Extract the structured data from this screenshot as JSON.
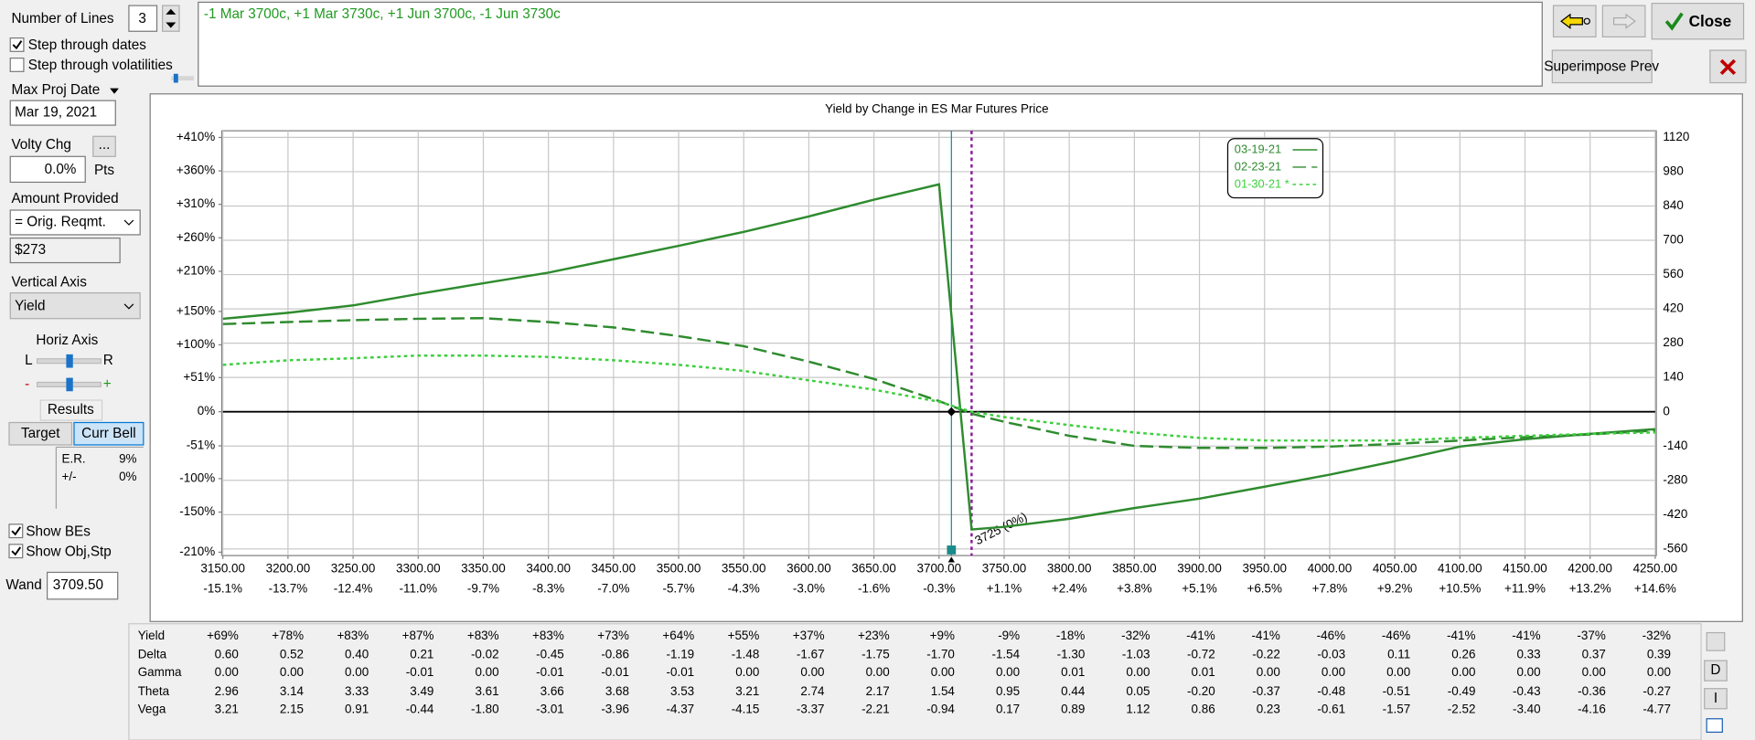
{
  "controls": {
    "number_of_lines_label": "Number of Lines",
    "number_of_lines": 3,
    "step_dates": "Step through dates",
    "step_vols": "Step through volatilities",
    "max_proj_date_label": "Max Proj Date",
    "max_proj_date": "Mar 19, 2021",
    "volty_chg_label": "Volty Chg",
    "ellipsis": "...",
    "volty_chg": "0.0%",
    "pts": "Pts",
    "amount_provided_label": "Amount Provided",
    "amount_provided": "= Orig. Reqmt.",
    "amount": "$273",
    "vertical_axis_label": "Vertical Axis",
    "vertical_axis": "Yield",
    "horiz_axis_label": "Horiz Axis",
    "l": "L",
    "r": "R",
    "minus": "-",
    "plus": "+",
    "results": "Results",
    "target": "Target",
    "curr_bell": "Curr Bell",
    "er_label": "E.R.",
    "er": "9%",
    "pm_label": "+/-",
    "pm": "0%",
    "show_bes": "Show BEs",
    "show_obj": "Show Obj,Stp",
    "wand_label": "Wand",
    "wand": {
      "value": 3709.5,
      "label": "3709.50"
    }
  },
  "position": "-1 Mar 3700c, +1 Mar 3730c, +1 Jun 3700c, -1 Jun 3730c",
  "buttons": {
    "close": "Close",
    "superimpose": "Superimpose Prev",
    "side": [
      "D",
      "I"
    ]
  },
  "chart_data": {
    "type": "line",
    "title": "Yield by Change in ES Mar Futures Price",
    "grid": true,
    "x": [
      3150,
      3200,
      3250,
      3300,
      3350,
      3400,
      3450,
      3500,
      3550,
      3600,
      3650,
      3700,
      3725,
      3750,
      3800,
      3850,
      3900,
      3950,
      4000,
      4050,
      4100,
      4150,
      4200,
      4250
    ],
    "series": [
      {
        "name": "03-19-21",
        "color": "#2e8b2e",
        "style": "solid",
        "values": [
          139,
          148,
          159,
          176,
          192,
          208,
          228,
          248,
          269,
          292,
          317,
          340,
          -176,
          -172,
          -160,
          -144,
          -130,
          -112,
          -94,
          -74,
          -52,
          -41,
          -33,
          -26
        ]
      },
      {
        "name": "02-23-21",
        "color": "#2e8b2e",
        "style": "dashed",
        "values": [
          131,
          134,
          137,
          139,
          140,
          134,
          126,
          113,
          98,
          75,
          49,
          16,
          -3,
          -15,
          -36,
          -51,
          -54,
          -54,
          -52,
          -48,
          -43,
          -38,
          -34,
          -28
        ]
      },
      {
        "name": "01-30-21 *",
        "color": "#3ccf3c",
        "style": "dotted",
        "values": [
          70,
          77,
          80,
          84,
          84,
          82,
          77,
          70,
          61,
          47,
          33,
          15,
          0,
          -8,
          -20,
          -31,
          -39,
          -43,
          -43,
          -43,
          -39,
          -36,
          -33,
          -31
        ]
      }
    ],
    "xlim": [
      3150,
      4250
    ],
    "xticks": [
      {
        "value": 3150,
        "label": "3150.00"
      },
      {
        "value": 3200,
        "label": "3200.00"
      },
      {
        "value": 3250,
        "label": "3250.00"
      },
      {
        "value": 3300,
        "label": "3300.00"
      },
      {
        "value": 3350,
        "label": "3350.00"
      },
      {
        "value": 3400,
        "label": "3400.00"
      },
      {
        "value": 3450,
        "label": "3450.00"
      },
      {
        "value": 3500,
        "label": "3500.00"
      },
      {
        "value": 3550,
        "label": "3550.00"
      },
      {
        "value": 3600,
        "label": "3600.00"
      },
      {
        "value": 3650,
        "label": "3650.00"
      },
      {
        "value": 3700,
        "label": "3700.00"
      },
      {
        "value": 3750,
        "label": "3750.00"
      },
      {
        "value": 3800,
        "label": "3800.00"
      },
      {
        "value": 3850,
        "label": "3850.00"
      },
      {
        "value": 3900,
        "label": "3900.00"
      },
      {
        "value": 3950,
        "label": "3950.00"
      },
      {
        "value": 4000,
        "label": "4000.00"
      },
      {
        "value": 4050,
        "label": "4050.00"
      },
      {
        "value": 4100,
        "label": "4100.00"
      },
      {
        "value": 4150,
        "label": "4150.00"
      },
      {
        "value": 4200,
        "label": "4200.00"
      },
      {
        "value": 4250,
        "label": "4250.00"
      }
    ],
    "x_pct_labels": [
      "-15.1%",
      "-13.7%",
      "-12.4%",
      "-11.0%",
      "-9.7%",
      "-8.3%",
      "-7.0%",
      "-5.7%",
      "-4.3%",
      "-3.0%",
      "-1.6%",
      "-0.3%",
      "+1.1%",
      "+2.4%",
      "+3.8%",
      "+5.1%",
      "+6.5%",
      "+7.8%",
      "+9.2%",
      "+10.5%",
      "+11.9%",
      "+13.2%",
      "+14.6%"
    ],
    "ylim": [
      -215,
      420
    ],
    "yticks": [
      {
        "value": 410,
        "label": "+410%"
      },
      {
        "value": 360,
        "label": "+360%"
      },
      {
        "value": 310,
        "label": "+310%"
      },
      {
        "value": 260,
        "label": "+260%"
      },
      {
        "value": 210,
        "label": "+210%"
      },
      {
        "value": 150,
        "label": "+150%"
      },
      {
        "value": 100,
        "label": "+100%"
      },
      {
        "value": 51,
        "label": "+51%"
      },
      {
        "value": 0,
        "label": "0%"
      },
      {
        "value": -51,
        "label": "-51%"
      },
      {
        "value": -100,
        "label": "-100%"
      },
      {
        "value": -150,
        "label": "-150%"
      },
      {
        "value": -210,
        "label": "-210%"
      }
    ],
    "y2lim": [
      -587,
      1147
    ],
    "y2ticks": [
      1120,
      980,
      840,
      700,
      560,
      420,
      280,
      140,
      0,
      -140,
      -280,
      -420,
      -560
    ],
    "annotations": [
      {
        "value": 3725,
        "label": "3725 (0%)"
      }
    ]
  },
  "table": {
    "row_labels": [
      "Yield",
      "Delta",
      "Gamma",
      "Theta",
      "Vega"
    ],
    "rows": [
      [
        "+69%",
        "+78%",
        "+83%",
        "+87%",
        "+83%",
        "+83%",
        "+73%",
        "+64%",
        "+55%",
        "+37%",
        "+23%",
        "+9%",
        "-9%",
        "-18%",
        "-32%",
        "-41%",
        "-41%",
        "-46%",
        "-46%",
        "-41%",
        "-41%",
        "-37%",
        "-32%"
      ],
      [
        "0.60",
        "0.52",
        "0.40",
        "0.21",
        "-0.02",
        "-0.45",
        "-0.86",
        "-1.19",
        "-1.48",
        "-1.67",
        "-1.75",
        "-1.70",
        "-1.54",
        "-1.30",
        "-1.03",
        "-0.72",
        "-0.22",
        "-0.03",
        "0.11",
        "0.26",
        "0.33",
        "0.37",
        "0.39"
      ],
      [
        "0.00",
        "0.00",
        "0.00",
        "-0.01",
        "0.00",
        "-0.01",
        "-0.01",
        "-0.01",
        "0.00",
        "0.00",
        "0.00",
        "0.00",
        "0.00",
        "0.01",
        "0.00",
        "0.01",
        "0.00",
        "0.00",
        "0.00",
        "0.00",
        "0.00",
        "0.00",
        "0.00"
      ],
      [
        "2.96",
        "3.14",
        "3.33",
        "3.49",
        "3.61",
        "3.66",
        "3.68",
        "3.53",
        "3.21",
        "2.74",
        "2.17",
        "1.54",
        "0.95",
        "0.44",
        "0.05",
        "-0.20",
        "-0.37",
        "-0.48",
        "-0.51",
        "-0.49",
        "-0.43",
        "-0.36",
        "-0.27"
      ],
      [
        "3.21",
        "2.15",
        "0.91",
        "-0.44",
        "-1.80",
        "-3.01",
        "-3.96",
        "-4.37",
        "-4.15",
        "-3.37",
        "-2.21",
        "-0.94",
        "0.17",
        "0.89",
        "1.12",
        "0.86",
        "0.23",
        "-0.61",
        "-1.57",
        "-2.52",
        "-3.40",
        "-4.16",
        "-4.77"
      ]
    ]
  }
}
